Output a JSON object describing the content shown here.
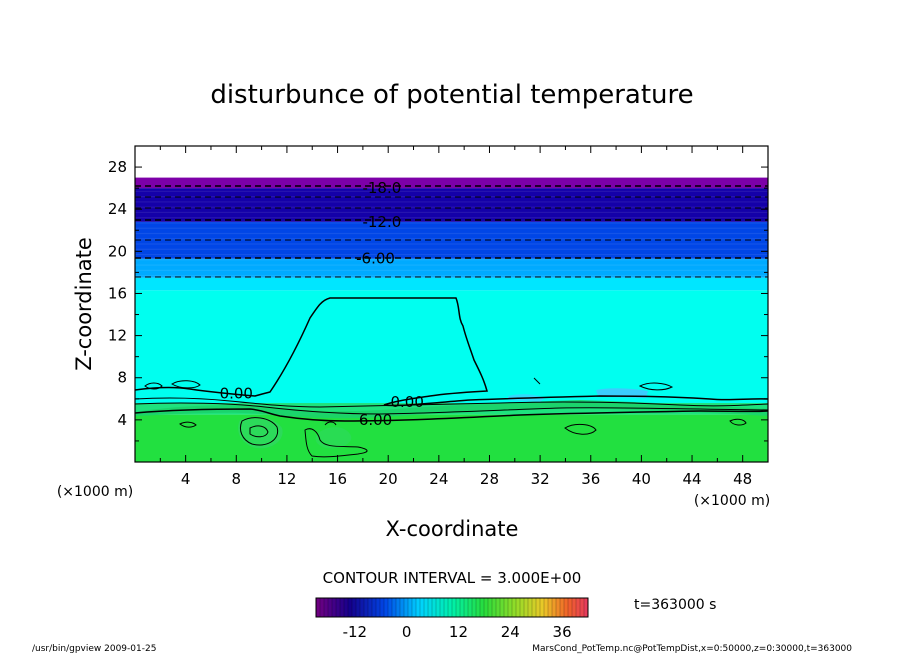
{
  "chart_data": {
    "type": "heatmap",
    "title": "disturbunce of potential temperature",
    "xlabel": "X-coordinate",
    "ylabel": "Z-coordinate",
    "x_unit": "(×1000 m)",
    "y_unit": "(×1000 m)",
    "xlim": [
      0,
      50
    ],
    "ylim": [
      0,
      30
    ],
    "xticks": [
      4,
      8,
      12,
      16,
      20,
      24,
      28,
      32,
      36,
      40,
      44,
      48
    ],
    "yticks": [
      4,
      8,
      12,
      16,
      20,
      24,
      28
    ],
    "contour_interval_text": "CONTOUR INTERVAL = 3.000E+00",
    "contour_labels": [
      {
        "text": "-18.0",
        "x": 19.5,
        "z": 26.0
      },
      {
        "text": "-12.0",
        "x": 19.5,
        "z": 22.8
      },
      {
        "text": "-6.00",
        "x": 19.0,
        "z": 19.3
      },
      {
        "text": "0.00",
        "x": 8.0,
        "z": 6.5
      },
      {
        "text": "0.00",
        "x": 21.5,
        "z": 5.7
      },
      {
        "text": "6.00",
        "x": 19.0,
        "z": 4.0
      }
    ],
    "field_levels": [
      {
        "z_from": 0,
        "z_to": 4.5,
        "value": 6,
        "color": "#22e040"
      },
      {
        "z_from": 4.5,
        "z_to": 5.6,
        "value": 3,
        "color": "#1ee27e"
      },
      {
        "z_from": 5.6,
        "z_to": 16.3,
        "value": 0,
        "color": "#00fff0"
      },
      {
        "z_from": 16.3,
        "z_to": 17.5,
        "value": -3,
        "color": "#00e6ff"
      },
      {
        "z_from": 17.5,
        "z_to": 19.3,
        "value": -6,
        "color": "#00aaff"
      },
      {
        "z_from": 19.3,
        "z_to": 22.8,
        "value": -12,
        "color": "#0046e6"
      },
      {
        "z_from": 22.8,
        "z_to": 26.0,
        "value": -18,
        "color": "#1400a8"
      },
      {
        "z_from": 26.0,
        "z_to": 27.0,
        "value": -21,
        "color": "#7d00a8"
      }
    ],
    "colorbar": {
      "ticks": [
        "-12",
        "0",
        "12",
        "24",
        "36"
      ],
      "range": [
        -21,
        42
      ]
    },
    "time_label": "t=363000 s"
  },
  "footer": {
    "left": "/usr/bin/gpview   2009-01-25",
    "right": "MarsCond_PotTemp.nc@PotTempDist,x=0:50000,z=0:30000,t=363000"
  }
}
